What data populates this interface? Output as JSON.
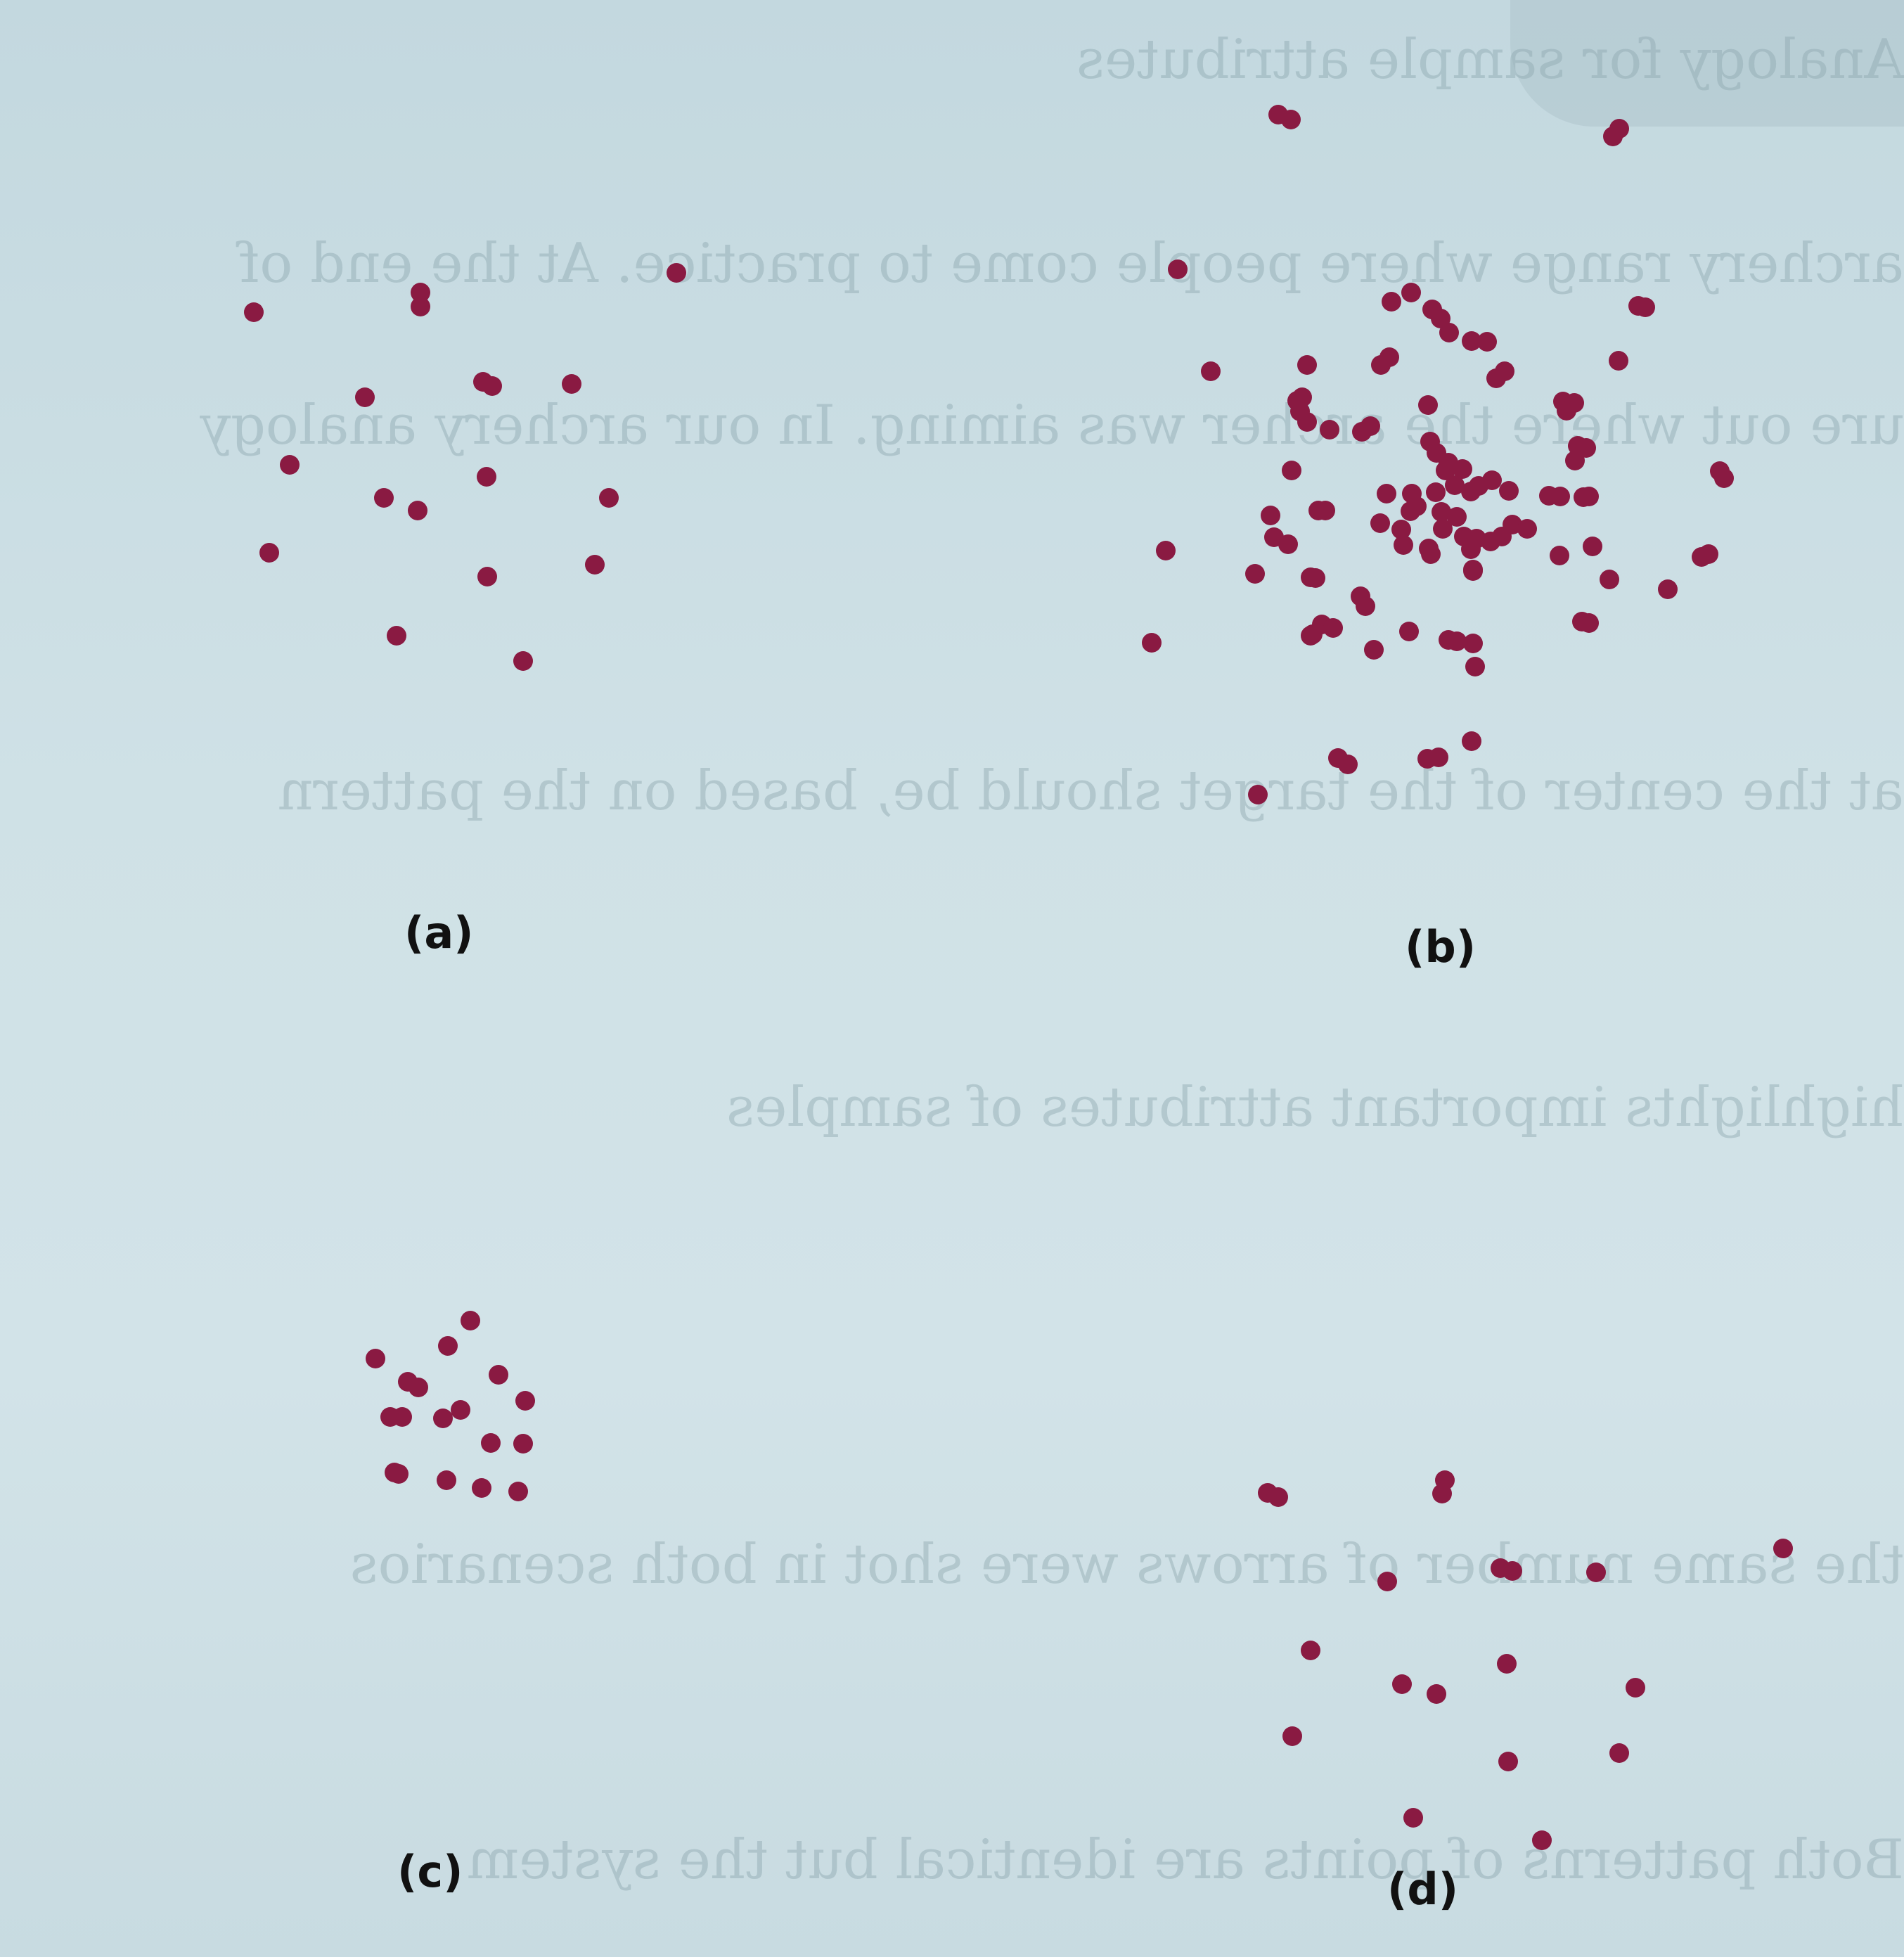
{
  "panels": [
    {
      "id": "a",
      "label": "(a)"
    },
    {
      "id": "b",
      "label": "(b)"
    },
    {
      "id": "c",
      "label": "(c)"
    },
    {
      "id": "d",
      "label": "(d)"
    }
  ],
  "dot_color": "#8a1a42",
  "background_color": "#cfe1e6"
}
